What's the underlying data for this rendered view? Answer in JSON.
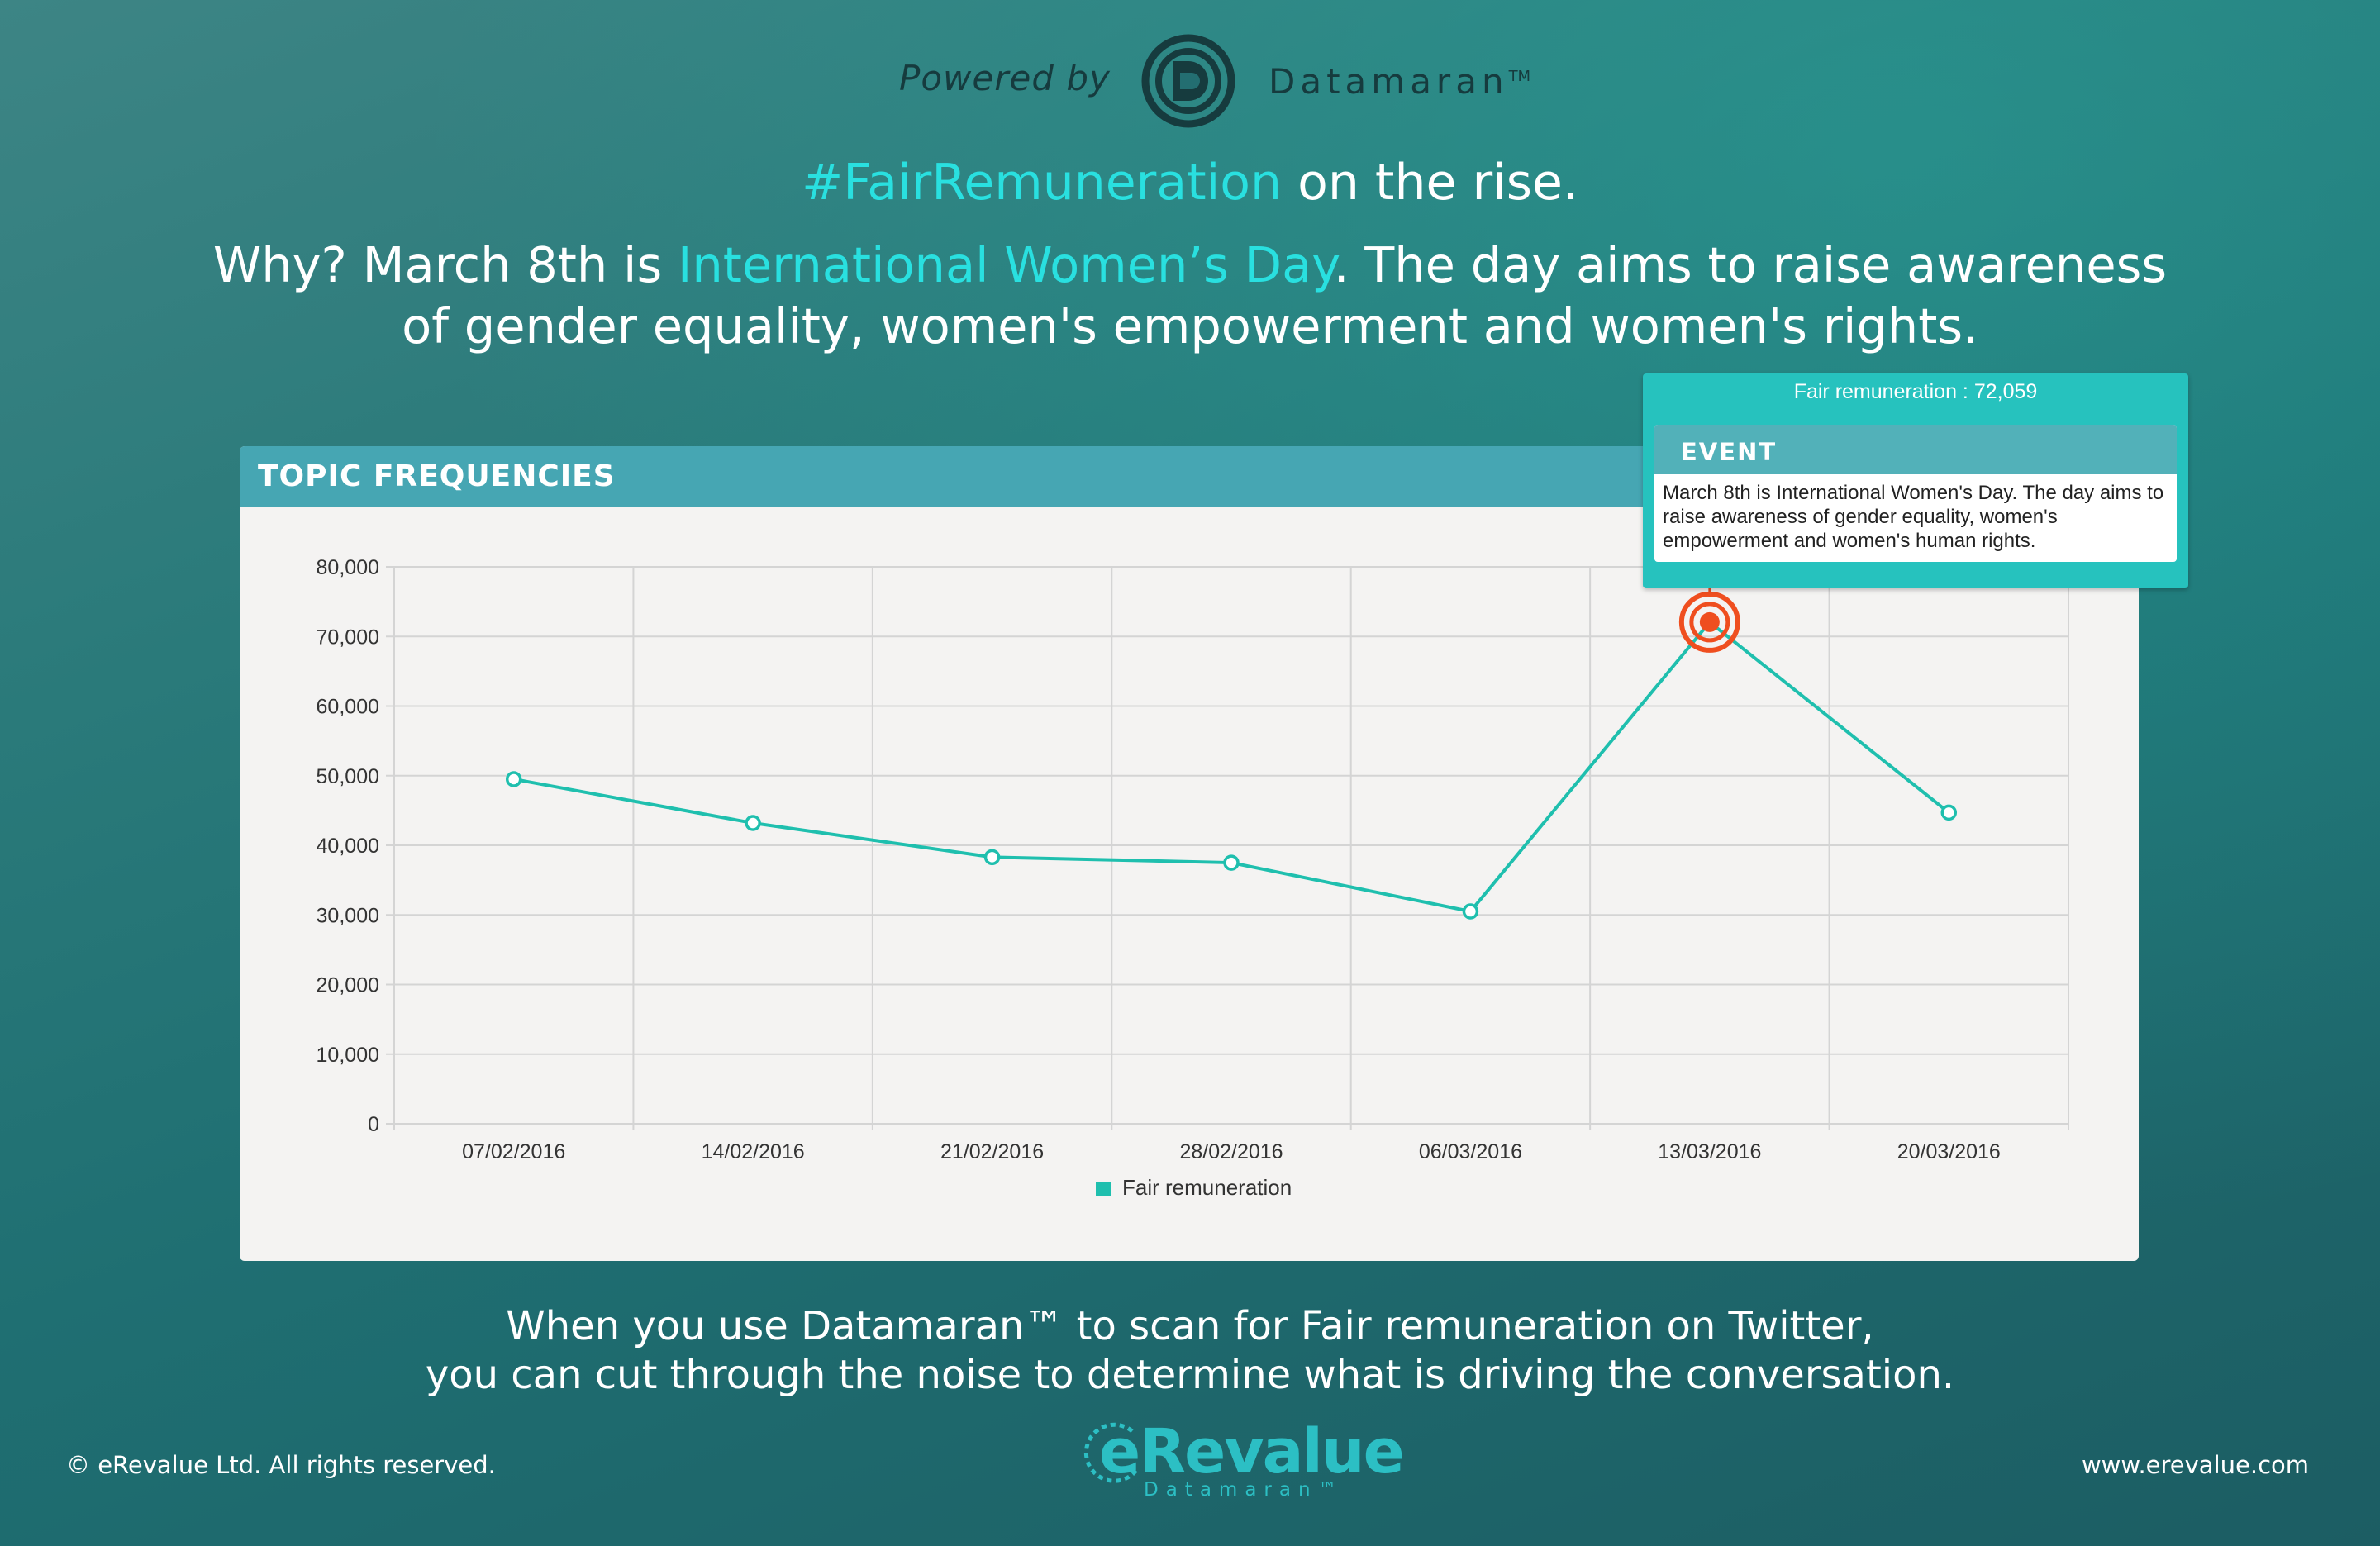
{
  "colors": {
    "accent": "#29e0e0",
    "series": "#1fbfae",
    "event_marker": "#ef4e1f",
    "panel_header": "#46a6b3",
    "tooltip": "#26c2be"
  },
  "header": {
    "powered_by": "Powered by",
    "brand": "Datamaran",
    "brand_tm": "TM",
    "brand_icon": "datamaran-logo-icon"
  },
  "headline": {
    "highlight": "#FairRemuneration",
    "rest": " on the rise."
  },
  "intro": {
    "part1": "Why? March 8th is ",
    "highlight": "International Women’s Day",
    "part2": ". The day aims to raise awareness of gender equality, women's empowerment and women's rights."
  },
  "panel": {
    "title": "TOPIC FREQUENCIES"
  },
  "tooltip": {
    "value_label": "Fair remuneration : 72,059",
    "event_title": "EVENT",
    "event_text": "March 8th is International Women's Day. The day aims to raise awareness of gender equality, women's empowerment and women's human rights."
  },
  "chart_data": {
    "type": "line",
    "title": "",
    "xlabel": "",
    "ylabel": "",
    "categories": [
      "07/02/2016",
      "14/02/2016",
      "21/02/2016",
      "28/02/2016",
      "06/03/2016",
      "13/03/2016",
      "20/03/2016"
    ],
    "y_ticks": [
      "0",
      "10,000",
      "20,000",
      "30,000",
      "40,000",
      "50,000",
      "60,000",
      "70,000",
      "80,000"
    ],
    "ylim": [
      0,
      80000
    ],
    "grid": true,
    "legend_position": "bottom-center",
    "series": [
      {
        "name": "Fair remuneration",
        "values": [
          49500,
          43200,
          38300,
          37500,
          30500,
          72059,
          44700
        ]
      }
    ],
    "highlight": {
      "category": "13/03/2016",
      "value": 72059
    }
  },
  "footer": {
    "tagline_line1": "When you use Datamaran™ to scan for Fair remuneration on Twitter,",
    "tagline_line2": "you can cut through the noise to determine what is driving the conversation.",
    "copyright": "© eRevalue Ltd. All rights reserved.",
    "website": "www.erevalue.com",
    "logo_name": "eRevalue",
    "logo_sub": "Datamaran™"
  }
}
